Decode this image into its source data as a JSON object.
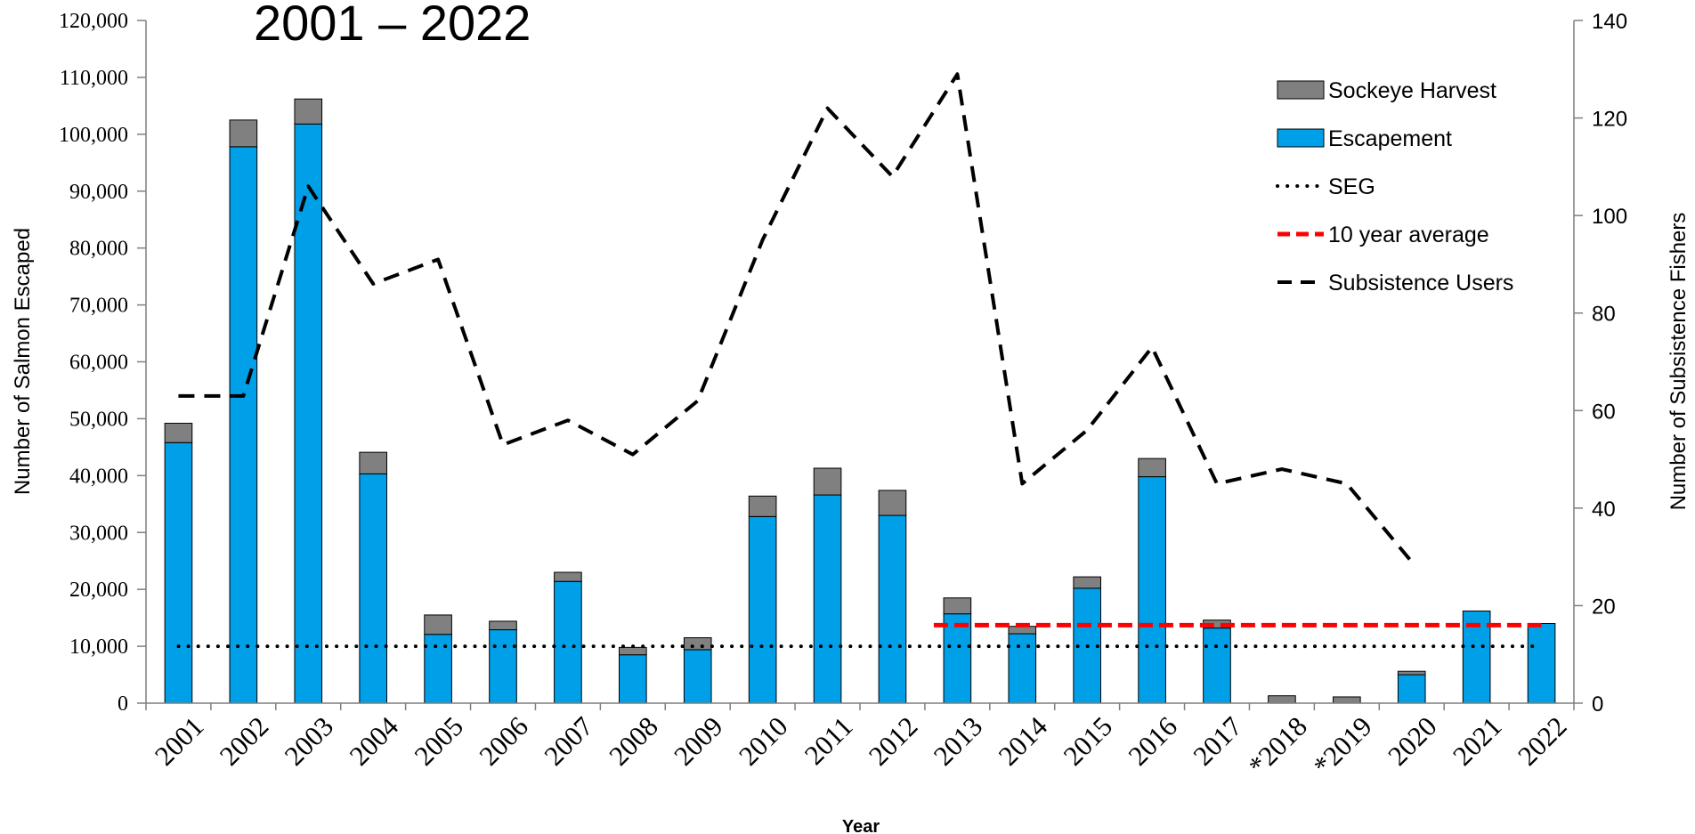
{
  "chart_data": {
    "type": "bar",
    "title": "2001 – 2022",
    "xlabel": "Year",
    "ylabel": "Number of Salmon Escaped",
    "y2label": "Number of Subsistence Fishers",
    "ylim": [
      0,
      120000
    ],
    "y2lim": [
      0,
      140
    ],
    "yticks": [
      "0",
      "10,000",
      "20,000",
      "30,000",
      "40,000",
      "50,000",
      "60,000",
      "70,000",
      "80,000",
      "90,000",
      "100,000",
      "110,000",
      "120,000"
    ],
    "y2ticks": [
      "0",
      "20",
      "40",
      "60",
      "80",
      "100",
      "120",
      "140"
    ],
    "categories": [
      "2001",
      "2002",
      "2003",
      "2004",
      "2005",
      "2006",
      "2007",
      "2008",
      "2009",
      "2010",
      "2011",
      "2012",
      "2013",
      "2014",
      "2015",
      "2016",
      "2017",
      "*2018",
      "*2019",
      "2020",
      "2021",
      "2022"
    ],
    "series": [
      {
        "name": "Escapement",
        "type": "stacked-bar",
        "axis": "left",
        "color": "#00A0E9",
        "values": [
          45800,
          97800,
          101800,
          40300,
          12100,
          12900,
          21400,
          8500,
          9400,
          32800,
          36600,
          33000,
          15700,
          12200,
          20200,
          39800,
          13200,
          0,
          0,
          5000,
          16200,
          14000
        ]
      },
      {
        "name": "Sockeye Harvest",
        "type": "stacked-bar",
        "axis": "left",
        "color": "#808080",
        "values": [
          3400,
          4700,
          4400,
          3800,
          3400,
          1500,
          1600,
          1300,
          2100,
          3600,
          4700,
          4400,
          2800,
          1300,
          2000,
          3200,
          1400,
          1300,
          1100,
          600,
          0,
          0
        ]
      },
      {
        "name": "SEG",
        "type": "line",
        "axis": "left",
        "style": "dotted",
        "color": "#000000",
        "value": 10000,
        "from": "2001",
        "to": "2022"
      },
      {
        "name": "10 year average",
        "type": "line",
        "axis": "left",
        "style": "dashed",
        "color": "#FF0000",
        "value": 13700,
        "from": "2013",
        "to": "2022"
      },
      {
        "name": "Subsistence Users",
        "type": "line",
        "axis": "right",
        "style": "dashed",
        "color": "#000000",
        "values": [
          63,
          63,
          106,
          86,
          91,
          53,
          58,
          51,
          62,
          95,
          122,
          108,
          129,
          45,
          56,
          73,
          45,
          48,
          45,
          29,
          null,
          null
        ]
      }
    ],
    "legend": {
      "position": "top-right",
      "items": [
        "Sockeye Harvest",
        "Escapement",
        "SEG",
        "10 year average",
        "Subsistence Users"
      ]
    }
  }
}
